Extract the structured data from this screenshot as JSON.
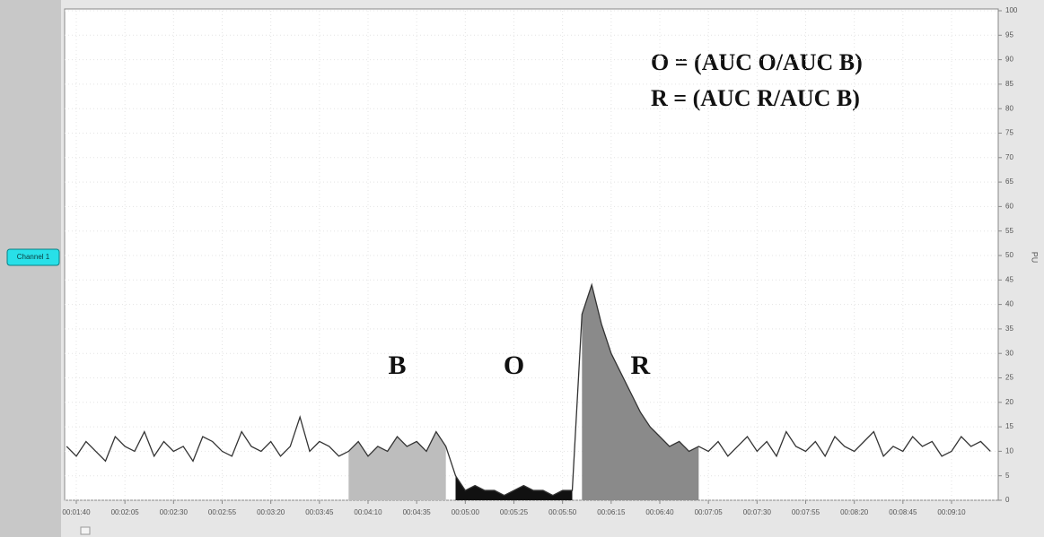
{
  "chart_data": {
    "type": "line",
    "button": "Channel 1",
    "y_label": "PU",
    "annotations": [
      "O = (AUC   O/AUC B)",
      "R = (AUC R/AUC B)"
    ],
    "x": [
      95,
      100,
      105,
      110,
      115,
      120,
      125,
      130,
      135,
      140,
      145,
      150,
      155,
      160,
      165,
      170,
      175,
      180,
      185,
      190,
      195,
      200,
      205,
      210,
      215,
      220,
      225,
      230,
      235,
      240,
      245,
      250,
      255,
      260,
      265,
      270,
      275,
      280,
      285,
      290,
      295,
      300,
      305,
      310,
      315,
      320,
      325,
      330,
      335,
      340,
      345,
      350,
      355,
      360,
      365,
      370,
      375,
      380,
      385,
      390,
      395,
      400,
      405,
      410,
      415,
      420,
      425,
      430,
      435,
      440,
      445,
      450,
      455,
      460,
      465,
      470,
      475,
      480,
      485,
      490,
      495,
      500,
      505,
      510,
      515,
      520,
      525,
      530,
      535,
      540,
      545,
      550,
      555,
      560,
      565,
      570
    ],
    "series": [
      {
        "color": "#333333",
        "values": [
          11,
          9,
          12,
          10,
          8,
          13,
          11,
          10,
          14,
          9,
          12,
          10,
          11,
          8,
          13,
          12,
          10,
          9,
          14,
          11,
          10,
          12,
          9,
          11,
          17,
          10,
          12,
          11,
          9,
          10,
          12,
          9,
          11,
          10,
          13,
          11,
          12,
          10,
          14,
          11,
          5,
          2,
          3,
          2,
          2,
          1,
          2,
          3,
          2,
          2,
          1,
          2,
          2,
          38,
          44,
          36,
          30,
          26,
          22,
          18,
          15,
          13,
          11,
          12,
          10,
          11,
          10,
          12,
          9,
          11,
          13,
          10,
          12,
          9,
          14,
          11,
          10,
          12,
          9,
          13,
          11,
          10,
          12,
          14,
          9,
          11,
          10,
          13,
          11,
          12,
          9,
          10,
          13,
          11,
          12,
          10
        ]
      }
    ],
    "regions": [
      {
        "label": "B",
        "start": 240,
        "end": 290,
        "color": "#bdbdbd"
      },
      {
        "label": "O",
        "start": 295,
        "end": 355,
        "color": "#111111"
      },
      {
        "label": "R",
        "start": 360,
        "end": 420,
        "color": "#8a8a8a"
      }
    ],
    "xlim": [
      94,
      574
    ],
    "xticks": [
      {
        "value": 100,
        "label": "00:01:40"
      },
      {
        "value": 125,
        "label": "00:02:05"
      },
      {
        "value": 150,
        "label": "00:02:30"
      },
      {
        "value": 175,
        "label": "00:02:55"
      },
      {
        "value": 200,
        "label": "00:03:20"
      },
      {
        "value": 225,
        "label": "00:03:45"
      },
      {
        "value": 250,
        "label": "00:04:10"
      },
      {
        "value": 275,
        "label": "00:04:35"
      },
      {
        "value": 300,
        "label": "00:05:00"
      },
      {
        "value": 325,
        "label": "00:05:25"
      },
      {
        "value": 350,
        "label": "00:05:50"
      },
      {
        "value": 375,
        "label": "00:06:15"
      },
      {
        "value": 400,
        "label": "00:06:40"
      },
      {
        "value": 425,
        "label": "00:07:05"
      },
      {
        "value": 450,
        "label": "00:07:30"
      },
      {
        "value": 475,
        "label": "00:07:55"
      },
      {
        "value": 500,
        "label": "00:08:20"
      },
      {
        "value": 525,
        "label": "00:08:45"
      },
      {
        "value": 550,
        "label": "00:09:10"
      }
    ],
    "ylim": [
      0,
      100
    ],
    "yticks": [
      0,
      5,
      10,
      15,
      20,
      25,
      30,
      35,
      40,
      45,
      50,
      55,
      60,
      65,
      70,
      75,
      80,
      85,
      90,
      95,
      100
    ],
    "grid": true
  }
}
